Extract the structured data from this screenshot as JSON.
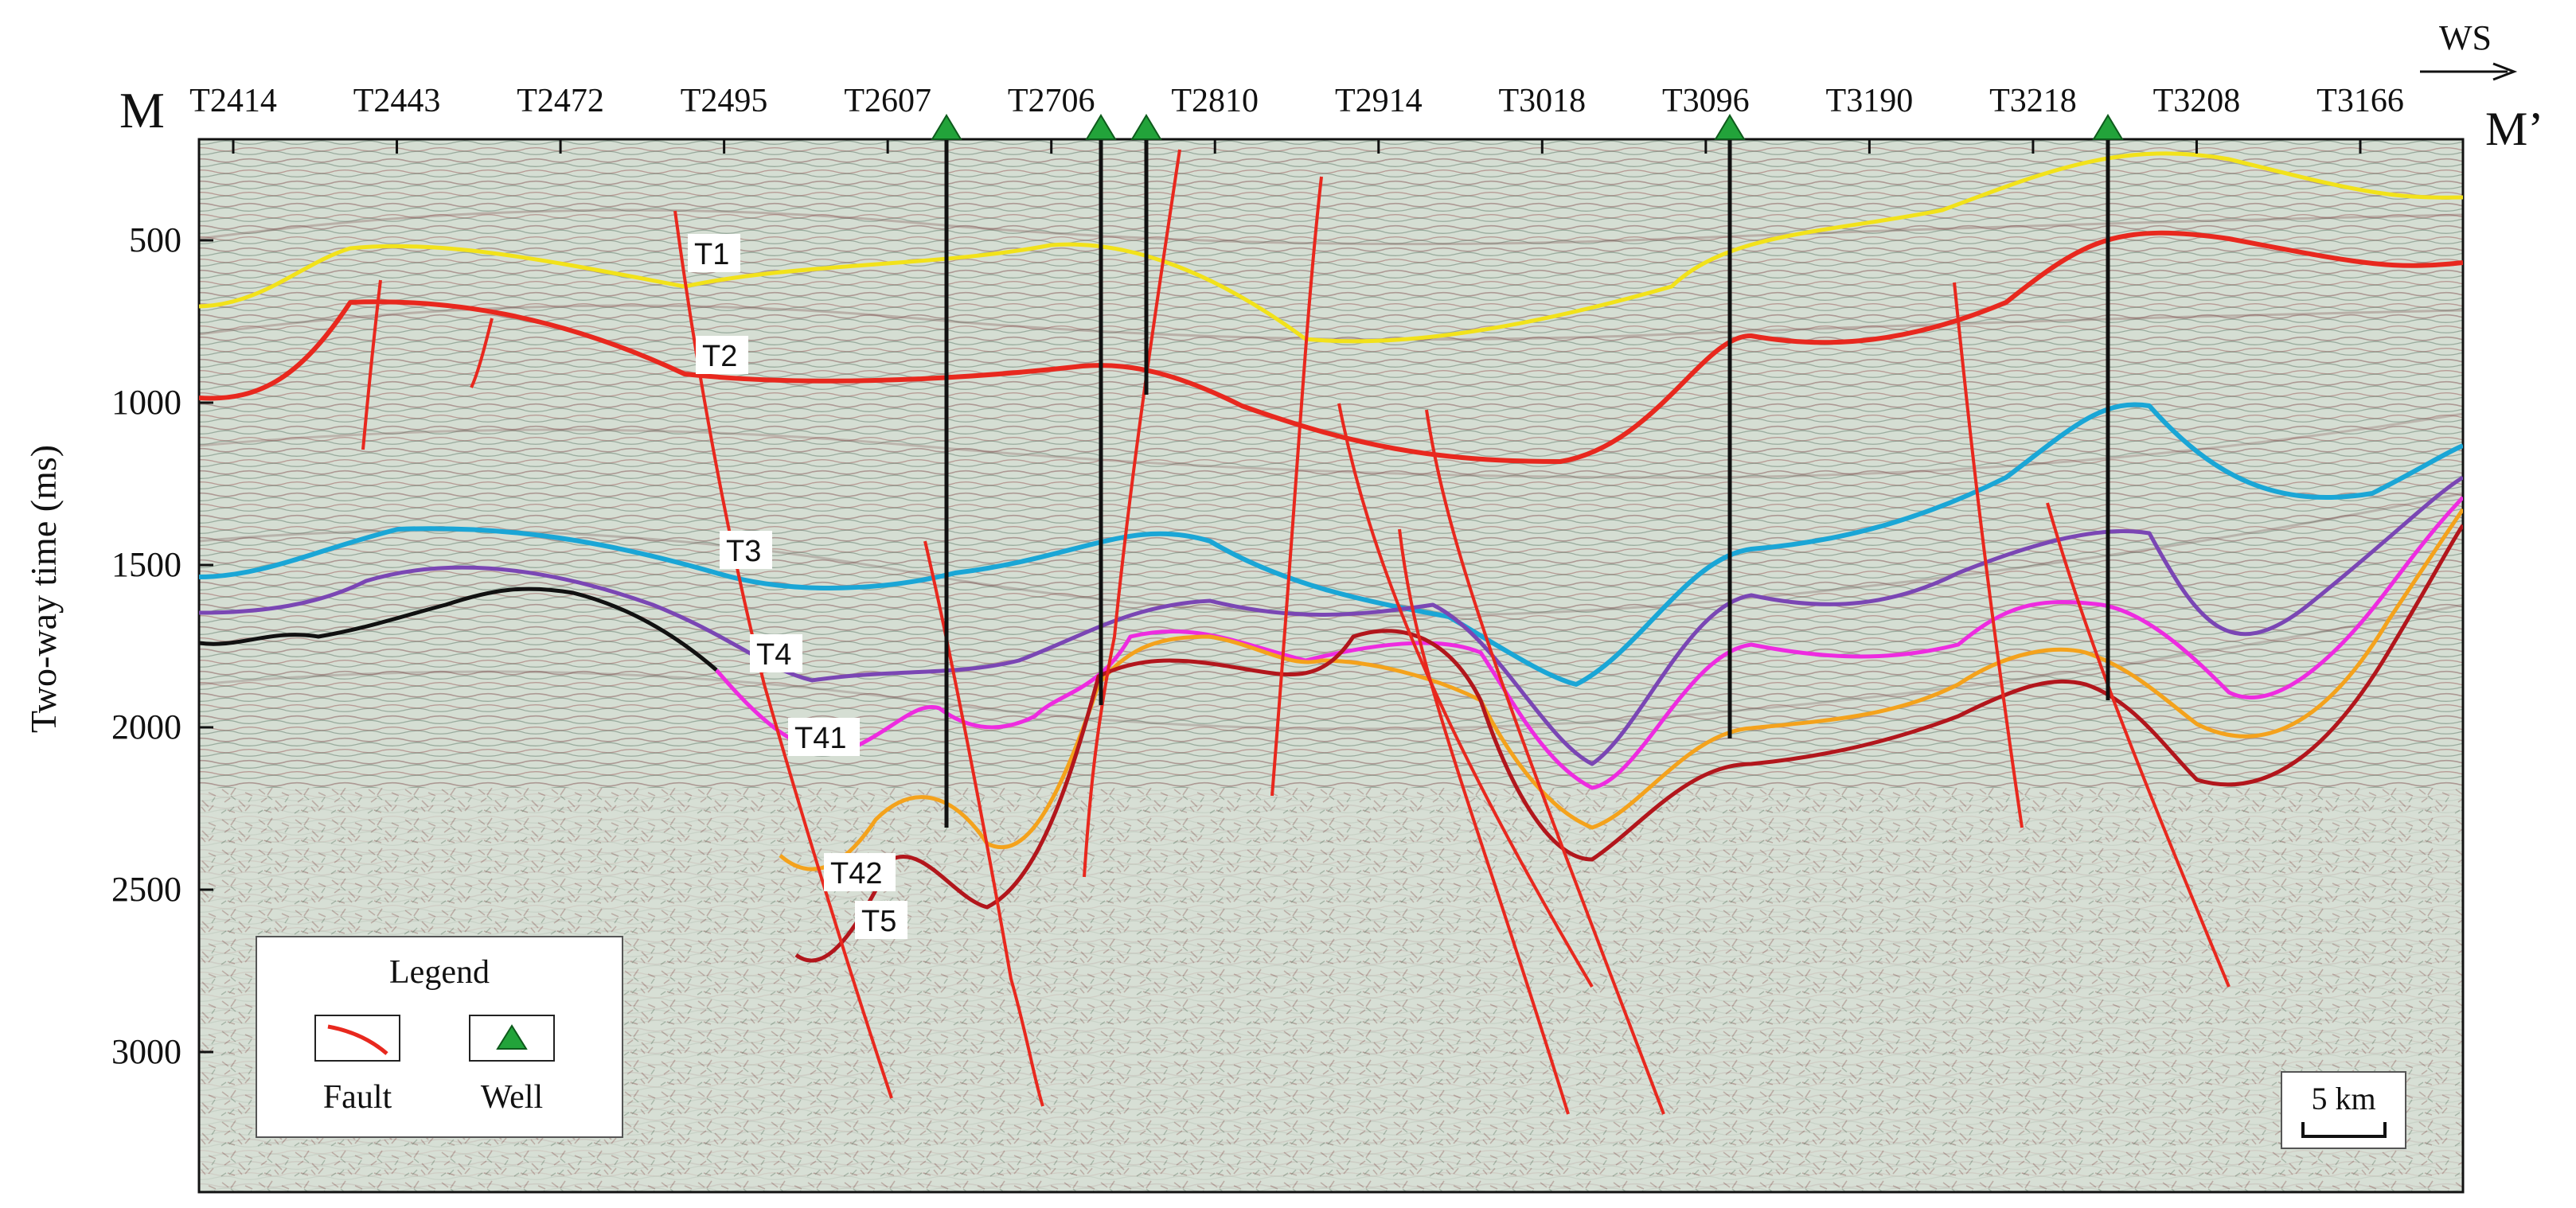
{
  "figure": {
    "left_end_label": "M",
    "right_end_label": "M’",
    "direction_label": "WS",
    "y_axis_label": "Two-way time (ms)",
    "y_ticks": [
      {
        "value": 500,
        "label": "500"
      },
      {
        "value": 1000,
        "label": "1000"
      },
      {
        "value": 1500,
        "label": "1500"
      },
      {
        "value": 2000,
        "label": "2000"
      },
      {
        "value": 2500,
        "label": "2500"
      },
      {
        "value": 3000,
        "label": "3000"
      }
    ],
    "trace_labels": [
      "T2414",
      "T2443",
      "T2472",
      "T2495",
      "T2607",
      "T2706",
      "T2810",
      "T2914",
      "T3018",
      "T3096",
      "T3190",
      "T3218",
      "T3208",
      "T3166"
    ],
    "horizon_labels": [
      "T1",
      "T2",
      "T3",
      "T4",
      "T41",
      "T42",
      "T5"
    ],
    "scale_bar_label": "5 km",
    "legend": {
      "title": "Legend",
      "fault_label": "Fault",
      "well_label": "Well"
    },
    "colors": {
      "T1": "#f2e21a",
      "T2": "#e8281e",
      "T3": "#1aa6d6",
      "T4": "#7a46b4",
      "T41": "#ee2be0",
      "T42": "#f4a21c",
      "T5": "#b2161c",
      "basement": "#111111",
      "fault": "#e8281e",
      "well_marker": "#22a33a",
      "well_line": "#111111",
      "seismic_background": "#d4ddd2"
    }
  }
}
